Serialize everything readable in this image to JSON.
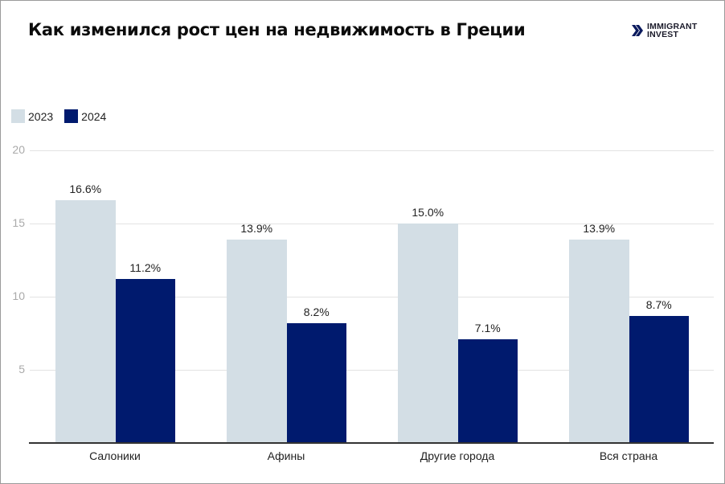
{
  "header": {
    "title": "Как изменился рост цен на недвижимость в Греции",
    "logo_line1": "IMMIGRANT",
    "logo_line2": "INVEST",
    "logo_icon": "double-chevron-right-icon"
  },
  "legend": [
    {
      "label": "2023",
      "color": "#d3dee5"
    },
    {
      "label": "2024",
      "color": "#001a6e"
    }
  ],
  "y_ticks": [
    "20",
    "15",
    "10",
    "5"
  ],
  "categories": [
    "Салоники",
    "Афины",
    "Другие города",
    "Вся страна"
  ],
  "bar_labels": {
    "s2023": [
      "16.6%",
      "13.9%",
      "15.0%",
      "13.9%"
    ],
    "s2024": [
      "11.2%",
      "8.2%",
      "7.1%",
      "8.7%"
    ]
  },
  "chart_data": {
    "type": "bar",
    "title": "Как изменился рост цен на недвижимость в Греции",
    "categories": [
      "Салоники",
      "Афины",
      "Другие города",
      "Вся страна"
    ],
    "series": [
      {
        "name": "2023",
        "values": [
          16.6,
          13.9,
          15.0,
          13.9
        ],
        "color": "#d3dee5"
      },
      {
        "name": "2024",
        "values": [
          11.2,
          8.2,
          7.1,
          8.7
        ],
        "color": "#001a6e"
      }
    ],
    "xlabel": "",
    "ylabel": "",
    "ylim": [
      0,
      20
    ],
    "y_ticks": [
      5,
      10,
      15,
      20
    ],
    "grid": true,
    "legend_position": "top-left",
    "value_format": "percent, 1 decimal"
  }
}
